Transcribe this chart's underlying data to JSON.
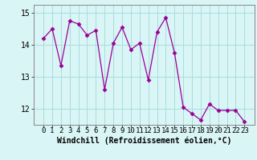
{
  "x": [
    0,
    1,
    2,
    3,
    4,
    5,
    6,
    7,
    8,
    9,
    10,
    11,
    12,
    13,
    14,
    15,
    16,
    17,
    18,
    19,
    20,
    21,
    22,
    23
  ],
  "y": [
    14.2,
    14.5,
    13.35,
    14.75,
    14.65,
    14.3,
    14.45,
    12.6,
    14.05,
    14.55,
    13.85,
    14.05,
    12.9,
    14.4,
    14.85,
    13.75,
    12.05,
    11.85,
    11.65,
    12.15,
    11.95,
    11.95,
    11.95,
    11.6
  ],
  "line_color": "#990099",
  "marker": "D",
  "marker_size": 2.5,
  "bg_color": "#d9f5f5",
  "grid_color": "#aadddd",
  "xlabel": "Windchill (Refroidissement éolien,°C)",
  "ylim": [
    11.5,
    15.25
  ],
  "yticks": [
    12,
    13,
    14,
    15
  ],
  "xticks": [
    0,
    1,
    2,
    3,
    4,
    5,
    6,
    7,
    8,
    9,
    10,
    11,
    12,
    13,
    14,
    15,
    16,
    17,
    18,
    19,
    20,
    21,
    22,
    23
  ],
  "xlabel_fontsize": 7,
  "tick_fontsize": 6.5
}
